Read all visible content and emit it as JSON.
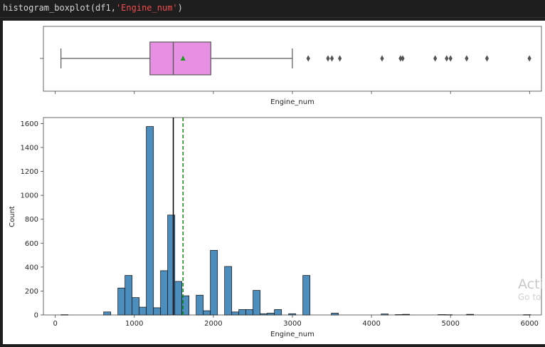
{
  "cell": {
    "func": "histogram_boxplot(df1,",
    "arg": "'Engine_num'",
    "close": ")"
  },
  "watermark": {
    "line1": "Acti",
    "line2": "Go to"
  },
  "chart_data": [
    {
      "type": "box",
      "xlabel": "Engine_num",
      "xlim": [
        -150,
        6150
      ],
      "ticks": [
        0,
        1000,
        2000,
        3000,
        4000,
        5000,
        6000
      ],
      "whisker_low": 72,
      "q1": 1198,
      "median": 1493,
      "q3": 1968,
      "whisker_high": 2999,
      "mean": 1616,
      "outliers": [
        3200,
        3450,
        3500,
        3600,
        4134,
        4367,
        4395,
        4806,
        4951,
        5000,
        5204,
        5461,
        5998
      ],
      "colors": {
        "box": "#e68fe3",
        "edge": "#5a5a5a",
        "mean": "#1a9a1a"
      }
    },
    {
      "type": "histogram",
      "xlabel": "Engine_num",
      "ylabel": "Count",
      "xlim": [
        -150,
        6150
      ],
      "ylim": [
        0,
        1650
      ],
      "xticks": [
        0,
        1000,
        2000,
        3000,
        4000,
        5000,
        6000
      ],
      "yticks": [
        0,
        200,
        400,
        600,
        800,
        1000,
        1200,
        1400,
        1600
      ],
      "bin_width": 90,
      "bin_starts": [
        72,
        612,
        792,
        882,
        972,
        1062,
        1152,
        1242,
        1332,
        1422,
        1512,
        1602,
        1782,
        1872,
        1962,
        2142,
        2232,
        2322,
        2412,
        2502,
        2592,
        2682,
        2772,
        2952,
        3132,
        3492,
        4122,
        4302,
        4392,
        4842,
        4932,
        5202,
        5922
      ],
      "counts": [
        2,
        25,
        225,
        330,
        145,
        65,
        1575,
        60,
        370,
        835,
        280,
        160,
        165,
        35,
        540,
        405,
        25,
        45,
        45,
        205,
        10,
        15,
        45,
        10,
        330,
        15,
        8,
        3,
        5,
        3,
        2,
        5,
        2
      ],
      "median_line": 1493,
      "mean_line": 1616,
      "colors": {
        "bar": "#4c8fbf",
        "edge": "#1c1c1c",
        "median": "#000000",
        "mean": "#0b8a0b"
      }
    }
  ]
}
